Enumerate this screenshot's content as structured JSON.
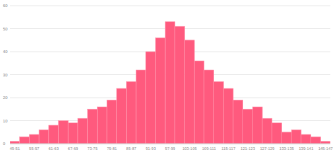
{
  "chart_data": {
    "type": "bar",
    "categories": [
      "49-51",
      null,
      "55-57",
      null,
      "61-63",
      null,
      "67-69",
      null,
      "73-75",
      null,
      "79-81",
      null,
      "85-87",
      null,
      "91-93",
      null,
      "97-99",
      null,
      "103-105",
      null,
      "109-111",
      null,
      "115-117",
      null,
      "121-123",
      null,
      "127-129",
      null,
      "133-135",
      null,
      "139-141",
      null,
      "145-147"
    ],
    "values": [
      1,
      3,
      4,
      6,
      8,
      10,
      9,
      11,
      15,
      16,
      19,
      24,
      27,
      32,
      40,
      46,
      53,
      51,
      45,
      36,
      32,
      27,
      24,
      19,
      15,
      16,
      11,
      9,
      5,
      6,
      4,
      3,
      1
    ],
    "color": "#ff5a7e",
    "ylim": [
      0,
      60
    ],
    "yticks": [
      0,
      10,
      20,
      30,
      40,
      50,
      60
    ],
    "grid": true
  }
}
